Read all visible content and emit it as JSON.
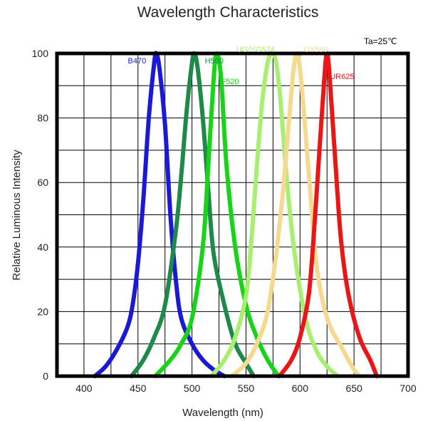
{
  "chart_data": {
    "type": "line",
    "title": "Wavelength Characteristics",
    "xlabel": "Wavelength (nm)",
    "ylabel": "Relative Luminous Intensity",
    "annotation": "Ta=25℃",
    "xlim": [
      375,
      700
    ],
    "ylim": [
      0,
      100
    ],
    "x_ticks": [
      400,
      450,
      500,
      550,
      600,
      650,
      700
    ],
    "y_ticks": [
      0,
      20,
      40,
      60,
      80,
      100
    ],
    "grid": true,
    "series": [
      {
        "name": "B470",
        "color": "#1a1ad6",
        "points": [
          [
            410,
            0
          ],
          [
            420,
            3
          ],
          [
            430,
            8
          ],
          [
            440,
            15
          ],
          [
            445,
            22
          ],
          [
            450,
            35
          ],
          [
            455,
            55
          ],
          [
            460,
            80
          ],
          [
            465,
            97
          ],
          [
            467,
            100
          ],
          [
            470,
            95
          ],
          [
            475,
            78
          ],
          [
            480,
            50
          ],
          [
            485,
            30
          ],
          [
            490,
            18
          ],
          [
            500,
            10
          ],
          [
            510,
            5
          ],
          [
            520,
            2
          ],
          [
            530,
            0
          ]
        ]
      },
      {
        "name": "H500",
        "color": "#1e8a4a",
        "points": [
          [
            444,
            0
          ],
          [
            455,
            5
          ],
          [
            465,
            12
          ],
          [
            475,
            22
          ],
          [
            485,
            45
          ],
          [
            490,
            62
          ],
          [
            495,
            82
          ],
          [
            500,
            97
          ],
          [
            502,
            100
          ],
          [
            505,
            96
          ],
          [
            510,
            80
          ],
          [
            515,
            58
          ],
          [
            520,
            38
          ],
          [
            530,
            22
          ],
          [
            540,
            10
          ],
          [
            550,
            4
          ],
          [
            557,
            0
          ]
        ]
      },
      {
        "name": "F520",
        "color": "#17d417",
        "points": [
          [
            466,
            0
          ],
          [
            480,
            5
          ],
          [
            490,
            10
          ],
          [
            500,
            18
          ],
          [
            510,
            40
          ],
          [
            515,
            65
          ],
          [
            520,
            92
          ],
          [
            523,
            100
          ],
          [
            527,
            92
          ],
          [
            532,
            65
          ],
          [
            540,
            40
          ],
          [
            550,
            22
          ],
          [
            560,
            12
          ],
          [
            570,
            5
          ],
          [
            580,
            0
          ]
        ]
      },
      {
        "name": "UG/YG574",
        "color": "#a8ef70",
        "points": [
          [
            518,
            0
          ],
          [
            530,
            5
          ],
          [
            540,
            12
          ],
          [
            550,
            25
          ],
          [
            555,
            42
          ],
          [
            560,
            65
          ],
          [
            565,
            85
          ],
          [
            570,
            97
          ],
          [
            574,
            100
          ],
          [
            578,
            97
          ],
          [
            582,
            85
          ],
          [
            588,
            60
          ],
          [
            595,
            38
          ],
          [
            605,
            18
          ],
          [
            615,
            8
          ],
          [
            625,
            3
          ],
          [
            635,
            0
          ]
        ]
      },
      {
        "name": "UY590",
        "color": "#f5d98f",
        "points": [
          [
            537,
            0
          ],
          [
            550,
            4
          ],
          [
            560,
            10
          ],
          [
            570,
            20
          ],
          [
            578,
            38
          ],
          [
            585,
            60
          ],
          [
            590,
            80
          ],
          [
            594,
            95
          ],
          [
            597,
            100
          ],
          [
            600,
            95
          ],
          [
            604,
            80
          ],
          [
            610,
            55
          ],
          [
            615,
            35
          ],
          [
            625,
            18
          ],
          [
            640,
            8
          ],
          [
            650,
            2
          ],
          [
            655,
            0
          ]
        ]
      },
      {
        "name": "UR625",
        "color": "#ea1616",
        "points": [
          [
            581,
            0
          ],
          [
            592,
            5
          ],
          [
            600,
            12
          ],
          [
            608,
            25
          ],
          [
            613,
            45
          ],
          [
            617,
            65
          ],
          [
            621,
            85
          ],
          [
            625,
            100
          ],
          [
            629,
            85
          ],
          [
            633,
            65
          ],
          [
            638,
            42
          ],
          [
            645,
            25
          ],
          [
            655,
            12
          ],
          [
            665,
            5
          ],
          [
            671,
            0
          ]
        ]
      }
    ]
  }
}
